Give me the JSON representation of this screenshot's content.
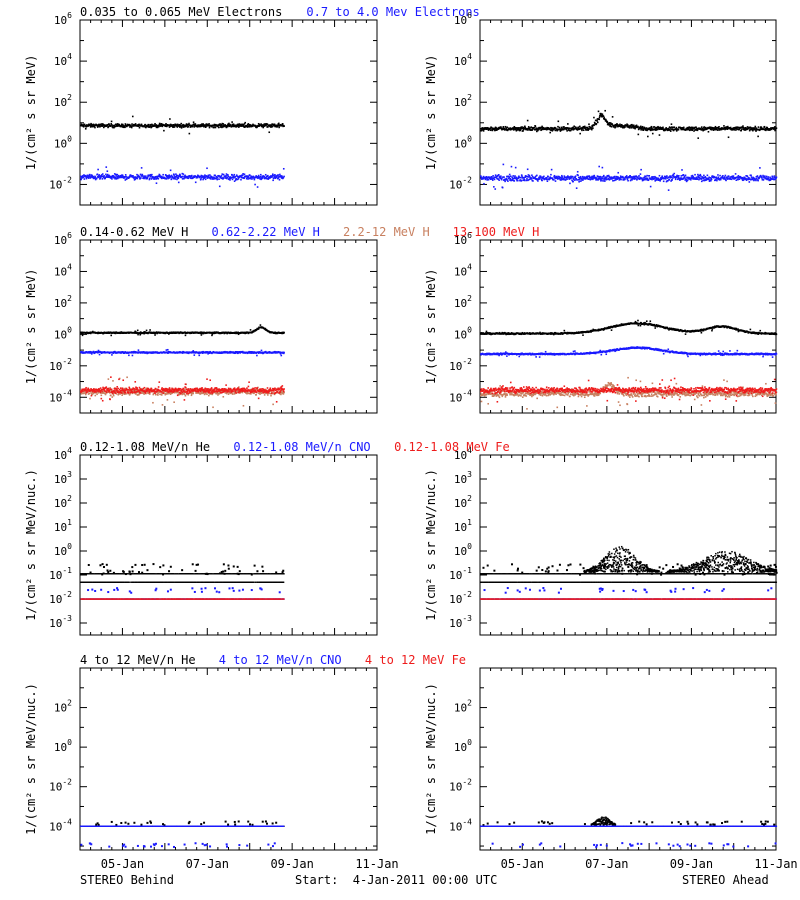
{
  "colors": {
    "black": "#000000",
    "blue": "#1a1aff",
    "tan": "#c88060",
    "red": "#ee1c1c"
  },
  "footer": {
    "left": "STEREO Behind",
    "center": "Start:  4-Jan-2011 00:00 UTC",
    "right": "STEREO Ahead"
  },
  "x_ticks": [
    "05-Jan",
    "07-Jan",
    "09-Jan",
    "11-Jan"
  ],
  "chart_data": [
    {
      "type": "scatter",
      "row": 1,
      "ylabel": "1/(cm² s sr MeV)",
      "ylim_log10": [
        -3,
        6
      ],
      "ytick_exponents": [
        -2,
        0,
        2,
        4,
        6
      ],
      "legend": [
        {
          "text": "0.035 to 0.065 MeV Electrons",
          "color": "black"
        },
        {
          "text": "0.7 to 4.0 Mev Electrons",
          "color": "blue"
        }
      ],
      "panels": {
        "behind": [
          {
            "name": "0.035 to 0.065 MeV Electrons",
            "color": "black",
            "x_end": 4.8,
            "base": 0.9,
            "noise": 0.12,
            "events": []
          },
          {
            "name": "0.7 to 4.0 Mev Electrons",
            "color": "blue",
            "x_end": 4.8,
            "base": -1.6,
            "noise": 0.18,
            "events": []
          }
        ],
        "ahead": [
          {
            "name": "0.035 to 0.065 MeV Electrons",
            "color": "black",
            "x_end": 7.0,
            "base": 0.75,
            "noise": 0.14,
            "events": [
              {
                "x": 2.85,
                "amp": 0.6,
                "w": 0.15
              },
              {
                "x": 3.3,
                "amp": 0.15,
                "w": 0.4
              }
            ]
          },
          {
            "name": "0.7 to 4.0 Mev Electrons",
            "color": "blue",
            "x_end": 7.0,
            "base": -1.65,
            "noise": 0.2,
            "events": []
          }
        ]
      }
    },
    {
      "type": "scatter",
      "row": 2,
      "ylabel": "1/(cm² s sr MeV)",
      "ylim_log10": [
        -5,
        6
      ],
      "ytick_exponents": [
        -4,
        -2,
        0,
        2,
        4,
        6
      ],
      "legend": [
        {
          "text": "0.14-0.62 MeV H",
          "color": "black"
        },
        {
          "text": "0.62-2.22 MeV H",
          "color": "blue"
        },
        {
          "text": "2.2-12 MeV H",
          "color": "tan"
        },
        {
          "text": "13-100 MeV H",
          "color": "red"
        }
      ],
      "panels": {
        "behind": [
          {
            "name": "0.14-0.62 MeV H",
            "color": "black",
            "x_end": 4.8,
            "base": 0.15,
            "noise": 0.06,
            "events": [
              {
                "x": 4.25,
                "amp": 0.35,
                "w": 0.15
              }
            ]
          },
          {
            "name": "0.62-2.22 MeV H",
            "color": "blue",
            "x_end": 4.8,
            "base": -1.1,
            "noise": 0.07,
            "events": []
          },
          {
            "name": "2.2-12 MeV H",
            "color": "tan",
            "x_end": 4.8,
            "base": -3.6,
            "noise": 0.3,
            "events": []
          },
          {
            "name": "13-100 MeV H",
            "color": "red",
            "x_end": 4.8,
            "base": -3.5,
            "noise": 0.25,
            "events": []
          }
        ],
        "ahead": [
          {
            "name": "0.14-0.62 MeV H",
            "color": "black",
            "x_end": 7.0,
            "base": 0.1,
            "noise": 0.07,
            "events": [
              {
                "x": 3.7,
                "amp": 0.65,
                "w": 0.9
              },
              {
                "x": 5.7,
                "amp": 0.45,
                "w": 0.5
              }
            ]
          },
          {
            "name": "0.62-2.22 MeV H",
            "color": "blue",
            "x_end": 7.0,
            "base": -1.2,
            "noise": 0.07,
            "events": [
              {
                "x": 3.7,
                "amp": 0.4,
                "w": 0.8
              }
            ]
          },
          {
            "name": "2.2-12 MeV H",
            "color": "tan",
            "x_end": 7.0,
            "base": -3.7,
            "noise": 0.3,
            "events": [
              {
                "x": 3.05,
                "amp": 0.6,
                "w": 0.15
              }
            ]
          },
          {
            "name": "13-100 MeV H",
            "color": "red",
            "x_end": 7.0,
            "base": -3.5,
            "noise": 0.25,
            "events": []
          }
        ]
      }
    },
    {
      "type": "scatter",
      "row": 3,
      "ylabel": "1/(cm² s sr MeV/nuc.)",
      "ylim_log10": [
        -3.5,
        4
      ],
      "ytick_exponents": [
        -3,
        -2,
        -1,
        0,
        1,
        2,
        3,
        4
      ],
      "legend": [
        {
          "text": "0.12-1.08 MeV/n He",
          "color": "black"
        },
        {
          "text": "0.12-1.08 MeV/n CNO",
          "color": "blue"
        },
        {
          "text": "0.12-1.08 MeV Fe",
          "color": "red"
        }
      ],
      "panels": {
        "behind": [
          {
            "name": "0.12-1.08 MeV/n He",
            "color": "black",
            "x_end": 4.8,
            "levels": [
              -1.3,
              -0.95
            ],
            "sparse": [
              -0.85,
              -0.6
            ],
            "events": []
          },
          {
            "name": "0.12-1.08 MeV/n CNO",
            "color": "blue",
            "x_end": 4.8,
            "levels": [
              -2.0
            ],
            "sparse": [
              -1.6
            ],
            "events": []
          },
          {
            "name": "0.12-1.08 MeV Fe",
            "color": "red",
            "x_end": 4.8,
            "levels": [
              -2.0
            ],
            "sparse": [],
            "events": []
          }
        ],
        "ahead": [
          {
            "name": "0.12-1.08 MeV/n He",
            "color": "black",
            "x_end": 7.0,
            "levels": [
              -1.3,
              -0.95
            ],
            "sparse": [
              -0.85,
              -0.6
            ],
            "events": [
              {
                "x": 3.3,
                "amp": 1.0,
                "w": 0.5
              },
              {
                "x": 5.8,
                "amp": 0.8,
                "w": 0.8
              }
            ]
          },
          {
            "name": "0.12-1.08 MeV/n CNO",
            "color": "blue",
            "x_end": 7.0,
            "levels": [
              -2.0
            ],
            "sparse": [
              -1.6
            ],
            "events": []
          },
          {
            "name": "0.12-1.08 MeV Fe",
            "color": "red",
            "x_end": 7.0,
            "levels": [
              -2.0
            ],
            "sparse": [],
            "events": []
          }
        ]
      }
    },
    {
      "type": "scatter",
      "row": 4,
      "ylabel": "1/(cm² s sr MeV/nuc.)",
      "ylim_log10": [
        -5.2,
        4
      ],
      "ytick_exponents": [
        -4,
        -2,
        0,
        2
      ],
      "legend": [
        {
          "text": "4 to 12 MeV/n He",
          "color": "black"
        },
        {
          "text": "4 to 12 MeV/n CNO",
          "color": "blue"
        },
        {
          "text": "4 to 12 MeV Fe",
          "color": "red"
        }
      ],
      "panels": {
        "behind": [
          {
            "name": "4 to 12 MeV/n He",
            "color": "black",
            "x_end": 4.8,
            "levels": [
              -4.0
            ],
            "sparse": [
              -3.8
            ],
            "events": []
          },
          {
            "name": "4 to 12 MeV/n CNO",
            "color": "blue",
            "x_end": 4.8,
            "levels": [
              -4.0
            ],
            "sparse": [
              -4.9
            ],
            "events": []
          }
        ],
        "ahead": [
          {
            "name": "4 to 12 MeV/n He",
            "color": "black",
            "x_end": 7.0,
            "levels": [
              -4.0
            ],
            "sparse": [
              -3.8
            ],
            "events": [
              {
                "x": 2.9,
                "amp": 0.4,
                "w": 0.2
              }
            ]
          },
          {
            "name": "4 to 12 MeV/n CNO",
            "color": "blue",
            "x_end": 7.0,
            "levels": [
              -4.0
            ],
            "sparse": [
              -4.9
            ],
            "events": []
          }
        ]
      }
    }
  ],
  "x_axis": {
    "start_label": "Start:  4-Jan-2011 00:00 UTC",
    "xlim_days": [
      0,
      7
    ]
  }
}
